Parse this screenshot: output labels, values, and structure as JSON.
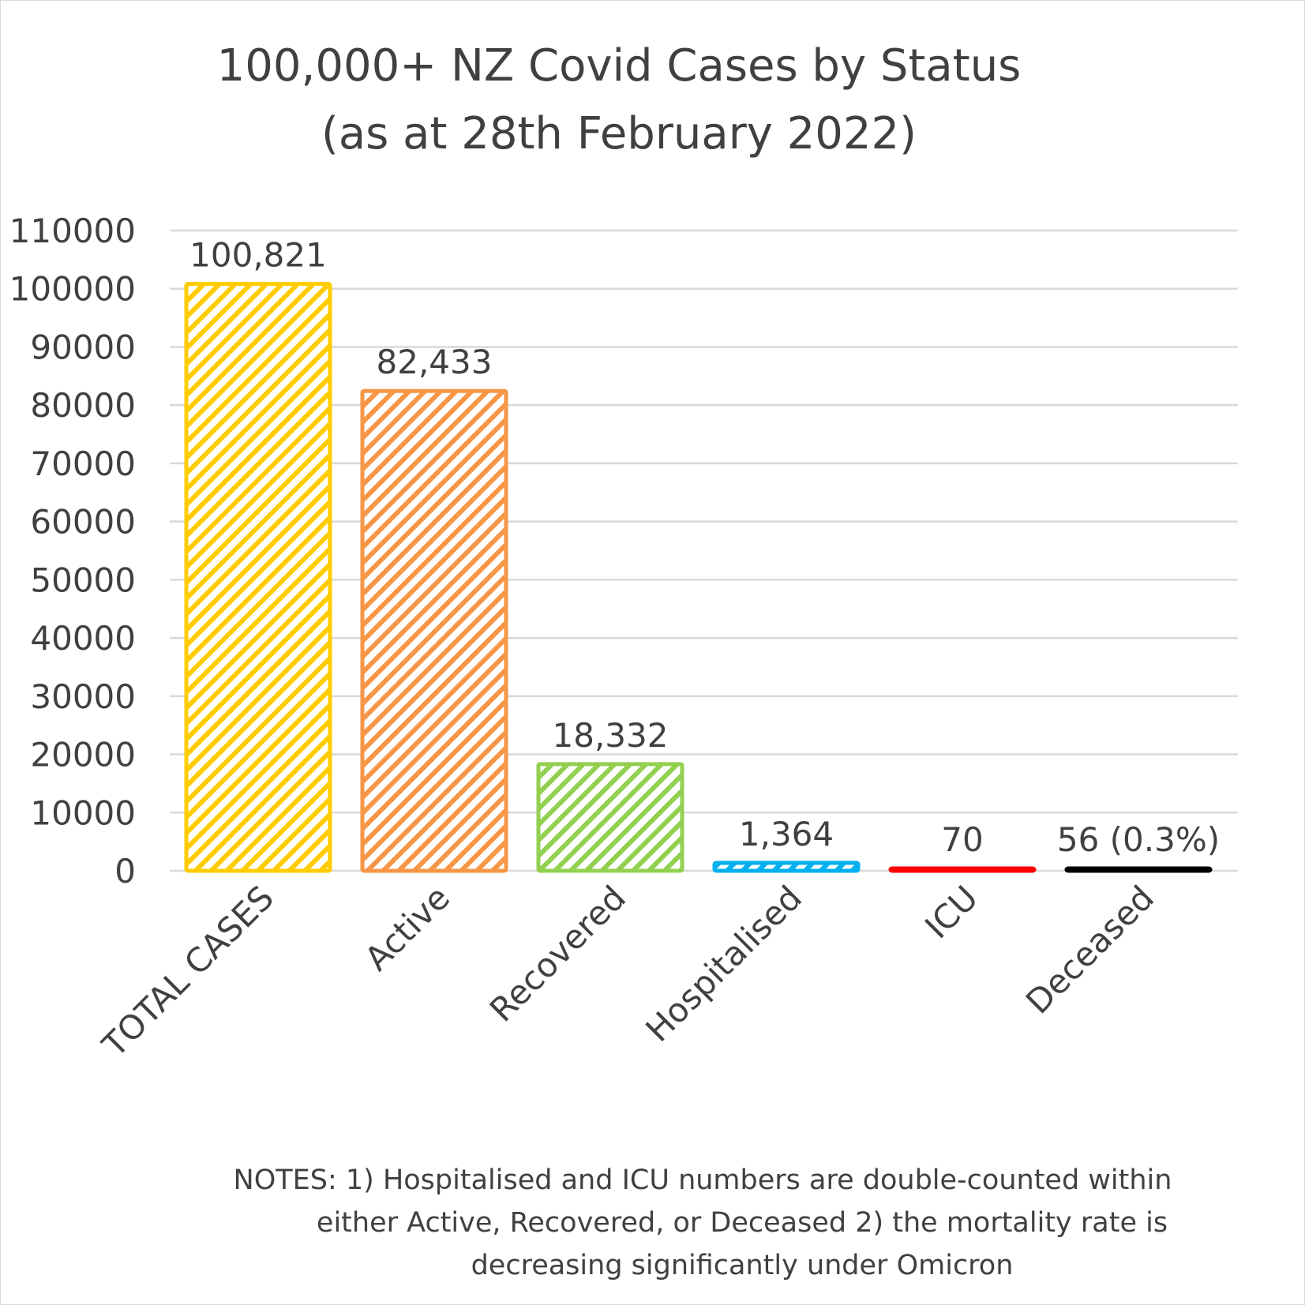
{
  "chart_data": {
    "type": "bar",
    "title": [
      "100,000+ NZ Covid Cases by Status",
      "(as at 28th February 2022)"
    ],
    "categories": [
      "TOTAL CASES",
      "Active",
      "Recovered",
      "Hospitalised",
      "ICU",
      "Deceased"
    ],
    "values": [
      100821,
      82433,
      18332,
      1364,
      70,
      56
    ],
    "data_labels": [
      "100,821",
      "82,433",
      "18,332",
      "1,364",
      "70",
      "56 (0.3%)"
    ],
    "colors": [
      "#ffcc00",
      "#f79646",
      "#92d050",
      "#00b0f0",
      "#ff0000",
      "#000000"
    ],
    "fill": "diagonal-stripe",
    "ylim": [
      0,
      110000
    ],
    "yticks": [
      0,
      10000,
      20000,
      30000,
      40000,
      50000,
      60000,
      70000,
      80000,
      90000,
      100000,
      110000
    ],
    "grid": true,
    "legend": "none",
    "xlabel": "",
    "ylabel": "",
    "notes": [
      "NOTES: 1) Hospitalised and ICU numbers are double-counted within",
      "either Active, Recovered, or Deceased 2) the mortality rate is",
      "decreasing significantly under Omicron"
    ]
  }
}
